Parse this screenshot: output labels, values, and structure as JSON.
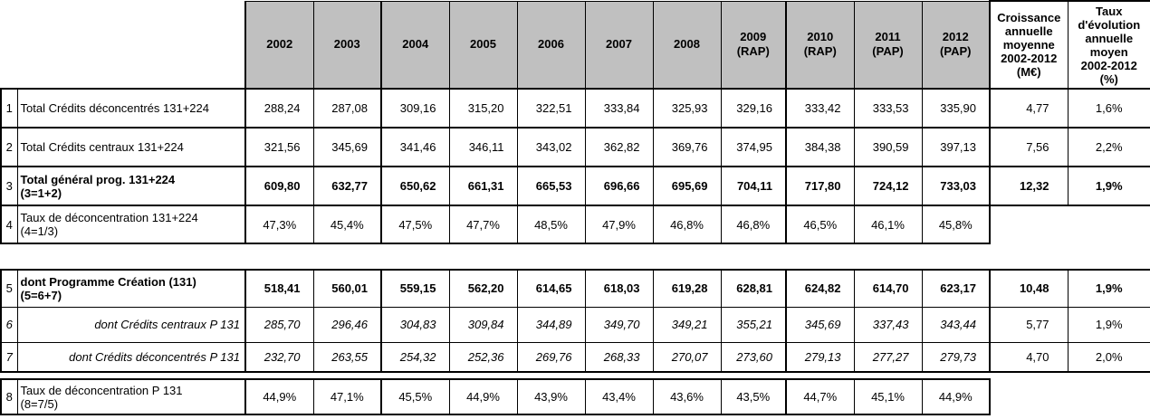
{
  "colors": {
    "header_bg": "#c0c0c0",
    "border": "#000000"
  },
  "header": {
    "years": [
      {
        "line1": "2002",
        "line2": ""
      },
      {
        "line1": "2003",
        "line2": ""
      },
      {
        "line1": "2004",
        "line2": ""
      },
      {
        "line1": "2005",
        "line2": ""
      },
      {
        "line1": "2006",
        "line2": ""
      },
      {
        "line1": "2007",
        "line2": ""
      },
      {
        "line1": "2008",
        "line2": ""
      },
      {
        "line1": "2009",
        "line2": "(RAP)"
      },
      {
        "line1": "2010",
        "line2": "(RAP)"
      },
      {
        "line1": "2011",
        "line2": "(PAP)"
      },
      {
        "line1": "2012",
        "line2": "(PAP)"
      }
    ],
    "summary": [
      {
        "lines": [
          "Croissance",
          "annuelle",
          "moyenne",
          "2002-2012",
          "(M€)"
        ]
      },
      {
        "lines": [
          "Taux",
          "d'évolution",
          "annuelle",
          "moyen",
          "2002-2012",
          "(%)"
        ]
      }
    ]
  },
  "rows": [
    {
      "num": "1",
      "label": "Total Crédits déconcentrés 131+224",
      "label2": "",
      "style": "normal",
      "values": [
        "288,24",
        "287,08",
        "309,16",
        "315,20",
        "322,51",
        "333,84",
        "325,93",
        "329,16",
        "333,42",
        "333,53",
        "335,90"
      ],
      "growth": "4,77",
      "rate": "1,6%"
    },
    {
      "num": "2",
      "label": "Total Crédits centraux 131+224",
      "label2": "",
      "style": "normal",
      "values": [
        "321,56",
        "345,69",
        "341,46",
        "346,11",
        "343,02",
        "362,82",
        "369,76",
        "374,95",
        "384,38",
        "390,59",
        "397,13"
      ],
      "growth": "7,56",
      "rate": "2,2%"
    },
    {
      "num": "3",
      "label": "Total général prog. 131+224",
      "label2": "(3=1+2)",
      "style": "bold",
      "values": [
        "609,80",
        "632,77",
        "650,62",
        "661,31",
        "665,53",
        "696,66",
        "695,69",
        "704,11",
        "717,80",
        "724,12",
        "733,03"
      ],
      "growth": "12,32",
      "rate": "1,9%"
    },
    {
      "num": "4",
      "label": "Taux de déconcentration 131+224",
      "label2": "(4=1/3)",
      "style": "normal",
      "values": [
        "47,3%",
        "45,4%",
        "47,5%",
        "47,7%",
        "48,5%",
        "47,9%",
        "46,8%",
        "46,8%",
        "46,5%",
        "46,1%",
        "45,8%"
      ],
      "growth": "",
      "rate": ""
    },
    {
      "num": "5",
      "label": "dont Programme Création (131)",
      "label2": "(5=6+7)",
      "style": "bold",
      "values": [
        "518,41",
        "560,01",
        "559,15",
        "562,20",
        "614,65",
        "618,03",
        "619,28",
        "628,81",
        "624,82",
        "614,70",
        "623,17"
      ],
      "growth": "10,48",
      "rate": "1,9%"
    },
    {
      "num": "6",
      "label": "dont Crédits centraux P 131",
      "label2": "",
      "style": "italic",
      "values": [
        "285,70",
        "296,46",
        "304,83",
        "309,84",
        "344,89",
        "349,70",
        "349,21",
        "355,21",
        "345,69",
        "337,43",
        "343,44"
      ],
      "growth": "5,77",
      "rate": "1,9%"
    },
    {
      "num": "7",
      "label": "dont Crédits déconcentrés P 131",
      "label2": "",
      "style": "italic",
      "values": [
        "232,70",
        "263,55",
        "254,32",
        "252,36",
        "269,76",
        "268,33",
        "270,07",
        "273,60",
        "279,13",
        "277,27",
        "279,73"
      ],
      "growth": "4,70",
      "rate": "2,0%"
    },
    {
      "num": "8",
      "label": "Taux de déconcentration P 131",
      "label2": "(8=7/5)",
      "style": "normal",
      "values": [
        "44,9%",
        "47,1%",
        "45,5%",
        "44,9%",
        "43,9%",
        "43,4%",
        "43,6%",
        "43,5%",
        "44,7%",
        "45,1%",
        "44,9%"
      ],
      "growth": "",
      "rate": ""
    }
  ]
}
